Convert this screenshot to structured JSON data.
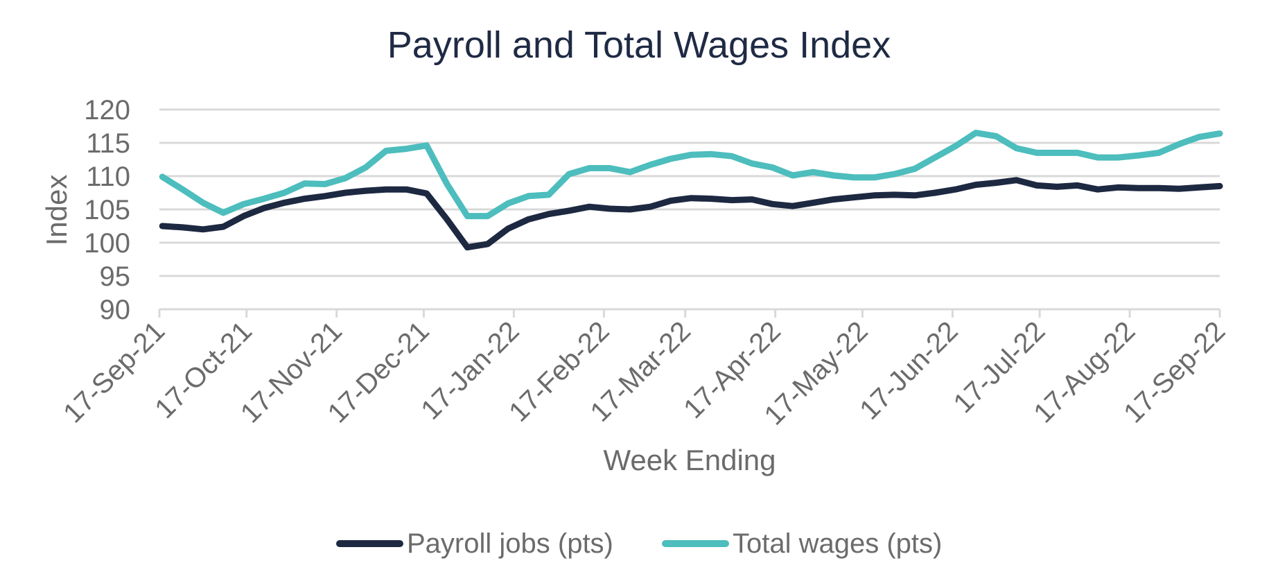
{
  "chart_data": {
    "type": "line",
    "title": "Payroll and Total Wages Index",
    "xlabel": "Week Ending",
    "ylabel": "Index",
    "ylim": [
      90,
      120
    ],
    "yticks": [
      "90",
      "95",
      "100",
      "105",
      "110",
      "115",
      "120"
    ],
    "xticks": [
      "17-Sep-21",
      "17-Oct-21",
      "17-Nov-21",
      "17-Dec-21",
      "17-Jan-22",
      "17-Feb-22",
      "17-Mar-22",
      "17-Apr-22",
      "17-May-22",
      "17-Jun-22",
      "17-Jul-22",
      "17-Aug-22",
      "17-Sep-22"
    ],
    "xlim": [
      "2021-09-17",
      "2022-09-17"
    ],
    "grid": true,
    "legend_position": "bottom",
    "series": [
      {
        "name": "Payroll jobs (pts)",
        "color": "#1d2841",
        "x": [
          "2021-09-18",
          "2021-09-25",
          "2021-10-02",
          "2021-10-09",
          "2021-10-16",
          "2021-10-23",
          "2021-10-30",
          "2021-11-06",
          "2021-11-13",
          "2021-11-20",
          "2021-11-27",
          "2021-12-04",
          "2021-12-11",
          "2021-12-18",
          "2021-12-25",
          "2022-01-01",
          "2022-01-08",
          "2022-01-15",
          "2022-01-22",
          "2022-01-29",
          "2022-02-05",
          "2022-02-12",
          "2022-02-19",
          "2022-02-26",
          "2022-03-05",
          "2022-03-12",
          "2022-03-19",
          "2022-03-26",
          "2022-04-02",
          "2022-04-09",
          "2022-04-16",
          "2022-04-23",
          "2022-04-30",
          "2022-05-07",
          "2022-05-14",
          "2022-05-21",
          "2022-05-28",
          "2022-06-04",
          "2022-06-11",
          "2022-06-18",
          "2022-06-25",
          "2022-07-02",
          "2022-07-09",
          "2022-07-16",
          "2022-07-23",
          "2022-07-30",
          "2022-08-06",
          "2022-08-13",
          "2022-08-20",
          "2022-08-27",
          "2022-09-03",
          "2022-09-10",
          "2022-09-17"
        ],
        "values": [
          102.5,
          102.3,
          102.0,
          102.4,
          104.0,
          105.2,
          106.0,
          106.6,
          107.0,
          107.5,
          107.8,
          108.0,
          108.0,
          107.4,
          103.5,
          99.3,
          99.8,
          102.1,
          103.5,
          104.3,
          104.8,
          105.4,
          105.1,
          105.0,
          105.4,
          106.3,
          106.7,
          106.6,
          106.4,
          106.5,
          105.8,
          105.5,
          106.0,
          106.5,
          106.8,
          107.1,
          107.2,
          107.1,
          107.5,
          108.0,
          108.7,
          109.0,
          109.4,
          108.6,
          108.4,
          108.6,
          108.0,
          108.3,
          108.2,
          108.2,
          108.1,
          108.3,
          108.5
        ]
      },
      {
        "name": "Total wages (pts)",
        "color": "#4dbdbd",
        "x": [
          "2021-09-18",
          "2021-09-25",
          "2021-10-02",
          "2021-10-09",
          "2021-10-16",
          "2021-10-23",
          "2021-10-30",
          "2021-11-06",
          "2021-11-13",
          "2021-11-20",
          "2021-11-27",
          "2021-12-04",
          "2021-12-11",
          "2021-12-18",
          "2021-12-25",
          "2022-01-01",
          "2022-01-08",
          "2022-01-15",
          "2022-01-22",
          "2022-01-29",
          "2022-02-05",
          "2022-02-12",
          "2022-02-19",
          "2022-02-26",
          "2022-03-05",
          "2022-03-12",
          "2022-03-19",
          "2022-03-26",
          "2022-04-02",
          "2022-04-09",
          "2022-04-16",
          "2022-04-23",
          "2022-04-30",
          "2022-05-07",
          "2022-05-14",
          "2022-05-21",
          "2022-05-28",
          "2022-06-04",
          "2022-06-11",
          "2022-06-18",
          "2022-06-25",
          "2022-07-02",
          "2022-07-09",
          "2022-07-16",
          "2022-07-23",
          "2022-07-30",
          "2022-08-06",
          "2022-08-13",
          "2022-08-20",
          "2022-08-27",
          "2022-09-03",
          "2022-09-10",
          "2022-09-17"
        ],
        "values": [
          109.9,
          108.0,
          106.0,
          104.5,
          105.8,
          106.6,
          107.5,
          108.9,
          108.8,
          109.7,
          111.3,
          113.8,
          114.1,
          114.6,
          108.8,
          104.0,
          104.0,
          105.9,
          107.0,
          107.2,
          110.3,
          111.2,
          111.2,
          110.6,
          111.7,
          112.6,
          113.2,
          113.3,
          113.0,
          111.9,
          111.3,
          110.1,
          110.6,
          110.1,
          109.8,
          109.8,
          110.3,
          111.1,
          112.8,
          114.5,
          116.5,
          116.0,
          114.2,
          113.5,
          113.5,
          113.5,
          112.8,
          112.8,
          113.1,
          113.5,
          114.8,
          115.9,
          116.4
        ]
      }
    ]
  }
}
